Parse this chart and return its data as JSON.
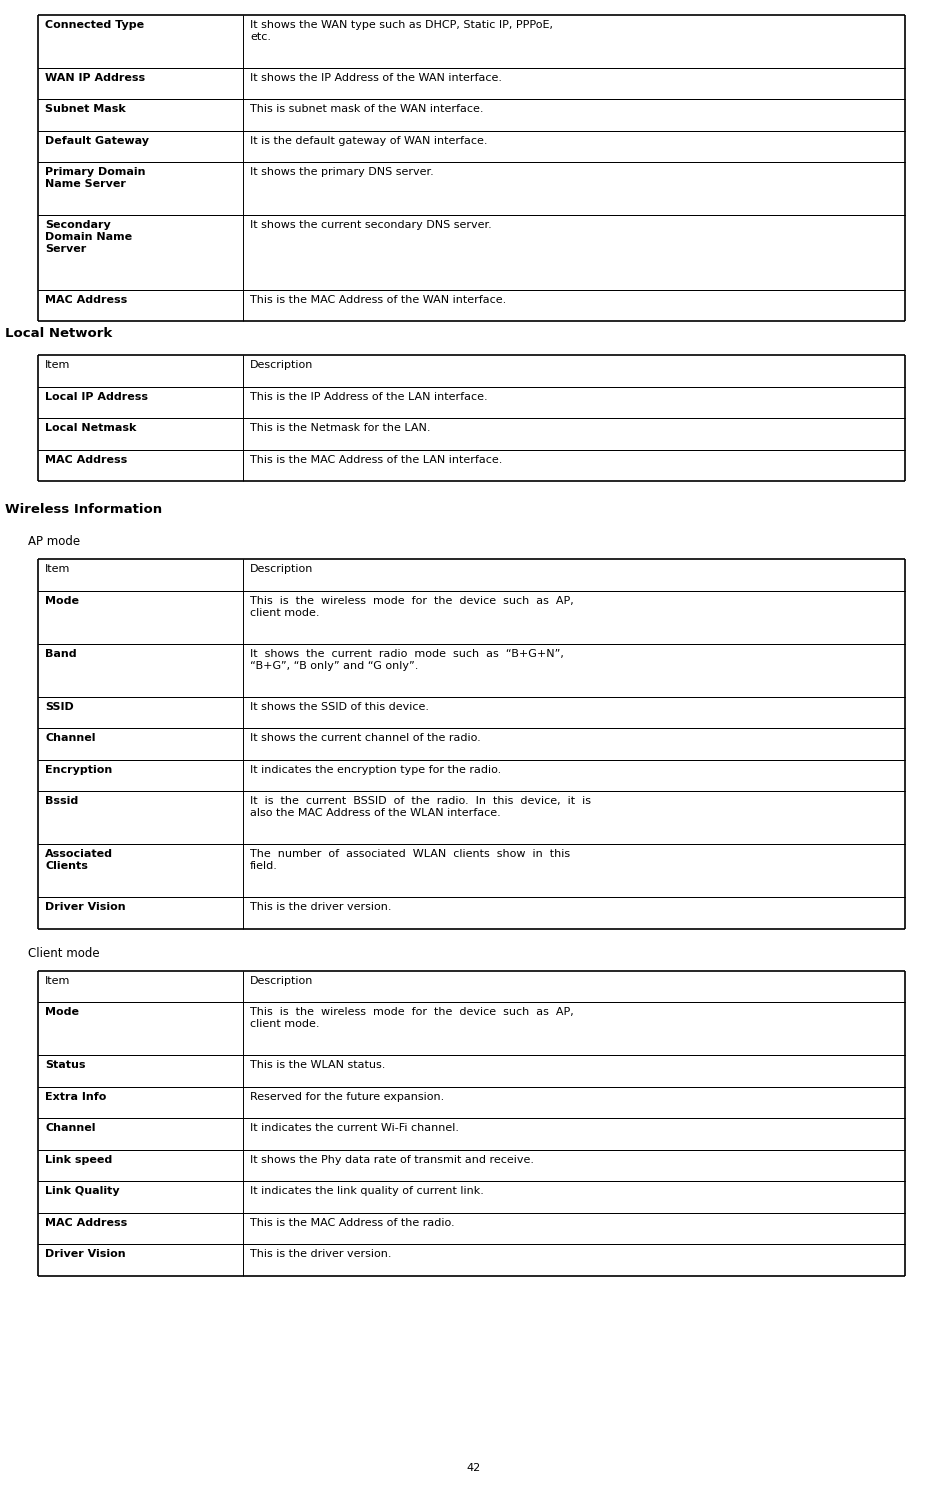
{
  "page_number": "42",
  "bg_color": "#ffffff",
  "text_color": "#000000",
  "wan_table": {
    "rows": [
      {
        "item": "Connected Type",
        "desc": "It shows the WAN type such as DHCP, Static IP, PPPoE,\netc."
      },
      {
        "item": "WAN IP Address",
        "desc": "It shows the IP Address of the WAN interface."
      },
      {
        "item": "Subnet Mask",
        "desc": "This is subnet mask of the WAN interface."
      },
      {
        "item": "Default Gateway",
        "desc": "It is the default gateway of WAN interface."
      },
      {
        "item": "Primary Domain\nName Server",
        "desc": "It shows the primary DNS server."
      },
      {
        "item": "Secondary\nDomain Name\nServer",
        "desc": "It shows the current secondary DNS server."
      },
      {
        "item": "MAC Address",
        "desc": "This is the MAC Address of the WAN interface."
      }
    ]
  },
  "local_network_label": "Local Network",
  "local_table": {
    "rows": [
      {
        "item": "Item",
        "desc": "Description",
        "header": true
      },
      {
        "item": "Local IP Address",
        "desc": "This is the IP Address of the LAN interface."
      },
      {
        "item": "Local Netmask",
        "desc": "This is the Netmask for the LAN."
      },
      {
        "item": "MAC Address",
        "desc": "This is the MAC Address of the LAN interface."
      }
    ]
  },
  "wireless_label": "Wireless Information",
  "ap_mode_label": "AP mode",
  "ap_table": {
    "rows": [
      {
        "item": "Item",
        "desc": "Description",
        "header": true
      },
      {
        "item": "Mode",
        "desc": "This  is  the  wireless  mode  for  the  device  such  as  AP,\nclient mode."
      },
      {
        "item": "Band",
        "desc": "It  shows  the  current  radio  mode  such  as  “B+G+N”,\n“B+G”, “B only” and “G only”."
      },
      {
        "item": "SSID",
        "desc": "It shows the SSID of this device."
      },
      {
        "item": "Channel",
        "desc": "It shows the current channel of the radio."
      },
      {
        "item": "Encryption",
        "desc": "It indicates the encryption type for the radio."
      },
      {
        "item": "Bssid",
        "desc": "It  is  the  current  BSSID  of  the  radio.  In  this  device,  it  is\nalso the MAC Address of the WLAN interface."
      },
      {
        "item": "Associated\nClients",
        "desc": "The  number  of  associated  WLAN  clients  show  in  this\nfield."
      },
      {
        "item": "Driver Vision",
        "desc": "This is the driver version."
      }
    ]
  },
  "client_mode_label": "Client mode",
  "client_table": {
    "rows": [
      {
        "item": "Item",
        "desc": "Description",
        "header": true
      },
      {
        "item": "Mode",
        "desc": "This  is  the  wireless  mode  for  the  device  such  as  AP,\nclient mode."
      },
      {
        "item": "Status",
        "desc": "This is the WLAN status."
      },
      {
        "item": "Extra Info",
        "desc": "Reserved for the future expansion."
      },
      {
        "item": "Channel",
        "desc": "It indicates the current Wi-Fi channel."
      },
      {
        "item": "Link speed",
        "desc": "It shows the Phy data rate of transmit and receive."
      },
      {
        "item": "Link Quality",
        "desc": "It indicates the link quality of current link."
      },
      {
        "item": "MAC Address",
        "desc": "This is the MAC Address of the radio."
      },
      {
        "item": "Driver Vision",
        "desc": "This is the driver version."
      }
    ]
  }
}
